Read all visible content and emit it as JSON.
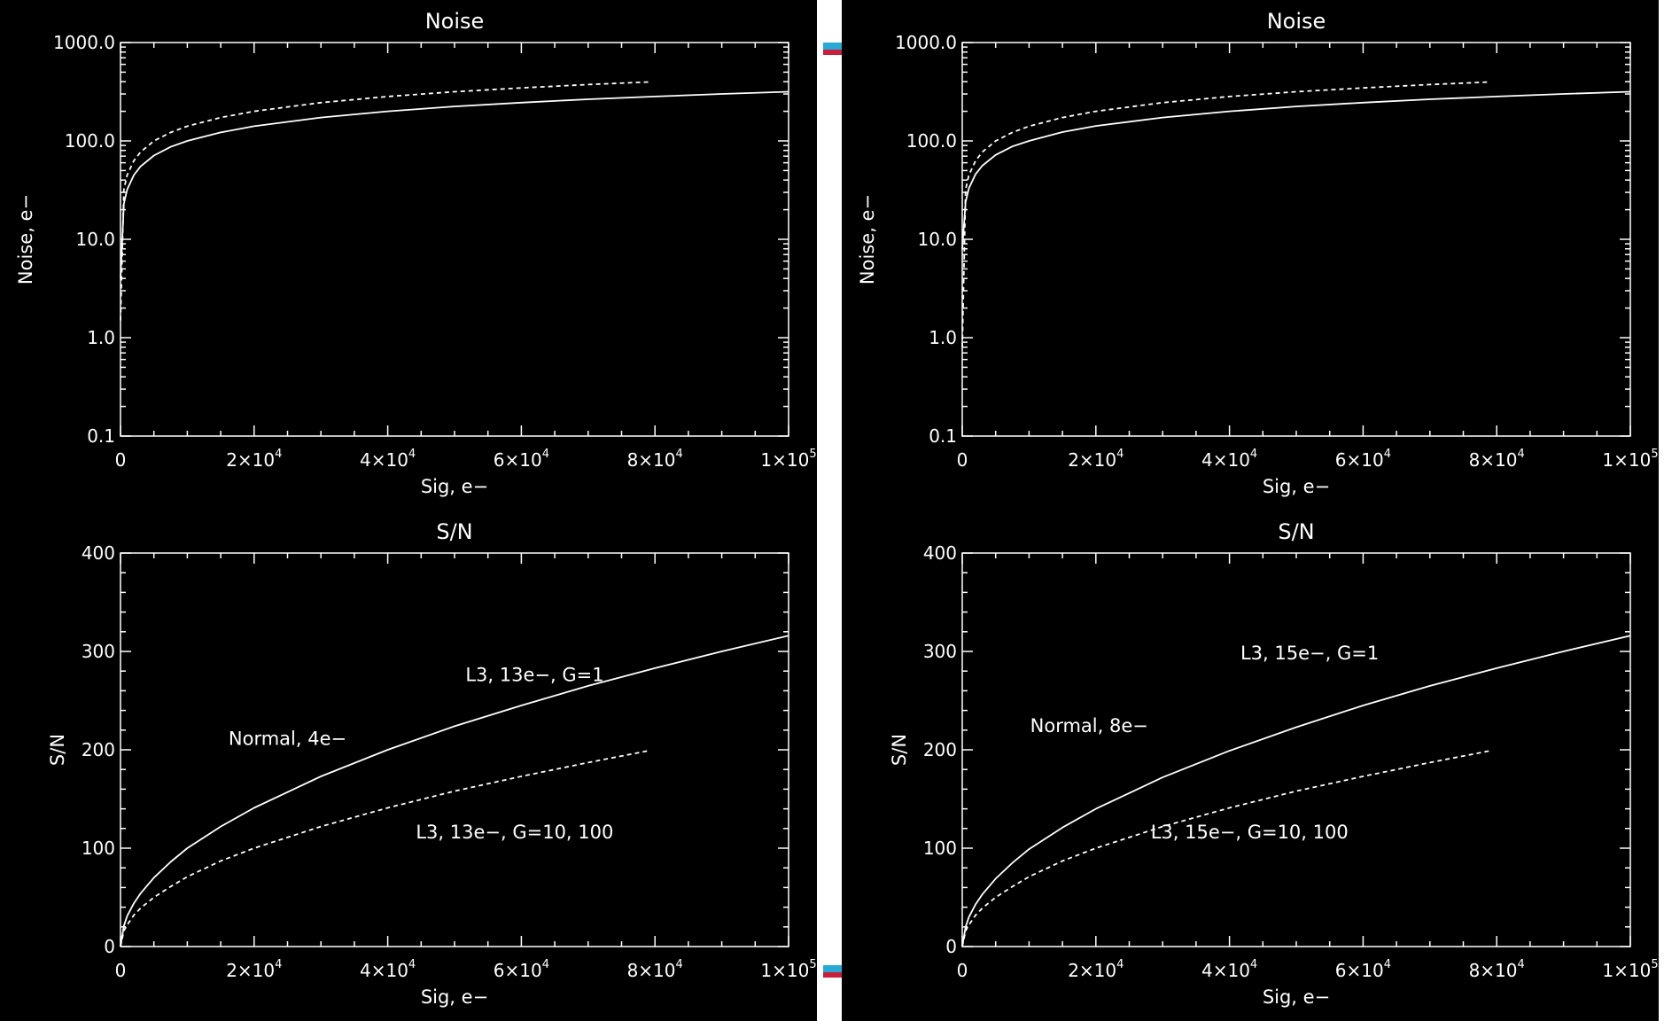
{
  "window": {
    "separator_colors": {
      "cyan": "#29a9d4",
      "red": "#c8203c"
    }
  },
  "chart_data": [
    {
      "type": "line",
      "title": "Noise",
      "xlabel": "Sig, e−",
      "ylabel": "Noise, e−",
      "xlim": [
        0,
        100000
      ],
      "ylim": [
        0.1,
        1000.0
      ],
      "yscale": "log",
      "grid": false,
      "x_tick_labels": [
        {
          "m": "0",
          "e": ""
        },
        {
          "m": "2×10",
          "e": "4"
        },
        {
          "m": "4×10",
          "e": "4"
        },
        {
          "m": "6×10",
          "e": "4"
        },
        {
          "m": "8×10",
          "e": "4"
        },
        {
          "m": "1×10",
          "e": "5"
        }
      ],
      "y_tick_labels": [
        "0.1",
        "1.0",
        "10.0",
        "100.0",
        "1000.0"
      ],
      "series": [
        {
          "style": "solid",
          "x": [
            0,
            500,
            1000,
            2000,
            3000,
            5000,
            7500,
            10000,
            15000,
            20000,
            30000,
            40000,
            50000,
            60000,
            70000,
            80000,
            90000,
            100000
          ],
          "y": [
            4,
            23,
            32,
            45,
            55,
            71,
            87,
            100,
            122,
            141,
            173,
            200,
            224,
            245,
            265,
            283,
            300,
            316
          ]
        },
        {
          "style": "dashed",
          "x": [
            0,
            500,
            1000,
            2000,
            3000,
            5000,
            7500,
            10000,
            15000,
            20000,
            30000,
            40000,
            50000,
            60000,
            70000,
            79000
          ],
          "y": [
            1.5,
            32,
            45,
            63,
            77,
            100,
            122,
            141,
            173,
            200,
            245,
            283,
            316,
            346,
            374,
            397
          ]
        }
      ],
      "annotations": []
    },
    {
      "type": "line",
      "title": "S/N",
      "xlabel": "Sig, e−",
      "ylabel": "S/N",
      "xlim": [
        0,
        100000
      ],
      "ylim": [
        0,
        400
      ],
      "yscale": "linear",
      "grid": false,
      "x_tick_labels": [
        {
          "m": "0",
          "e": ""
        },
        {
          "m": "2×10",
          "e": "4"
        },
        {
          "m": "4×10",
          "e": "4"
        },
        {
          "m": "6×10",
          "e": "4"
        },
        {
          "m": "8×10",
          "e": "4"
        },
        {
          "m": "1×10",
          "e": "5"
        }
      ],
      "y_tick_labels": [
        "0",
        "100",
        "200",
        "300",
        "400"
      ],
      "series": [
        {
          "style": "solid",
          "x": [
            0,
            500,
            1000,
            2000,
            3000,
            5000,
            7500,
            10000,
            15000,
            20000,
            30000,
            40000,
            50000,
            60000,
            70000,
            80000,
            90000,
            100000
          ],
          "y": [
            0,
            21,
            31,
            44,
            54,
            70,
            86,
            100,
            122,
            141,
            173,
            200,
            224,
            245,
            265,
            283,
            300,
            316
          ]
        },
        {
          "style": "dashed",
          "x": [
            0,
            500,
            1000,
            2000,
            3000,
            5000,
            7500,
            10000,
            15000,
            20000,
            30000,
            40000,
            50000,
            60000,
            70000,
            79000
          ],
          "y": [
            0,
            16,
            22,
            32,
            39,
            50,
            61,
            71,
            87,
            100,
            122,
            141,
            158,
            173,
            187,
            199
          ]
        }
      ],
      "annotations": [
        {
          "text": "Normal, 4e−",
          "x": 25000,
          "y": 205
        },
        {
          "text": "L3, 13e−, G=1",
          "x": 62000,
          "y": 270
        },
        {
          "text": "L3, 13e−, G=10, 100",
          "x": 59000,
          "y": 110
        }
      ]
    },
    {
      "type": "line",
      "title": "Noise",
      "xlabel": "Sig, e−",
      "ylabel": "Noise, e−",
      "xlim": [
        0,
        100000
      ],
      "ylim": [
        0.1,
        1000.0
      ],
      "yscale": "log",
      "grid": false,
      "x_tick_labels": [
        {
          "m": "0",
          "e": ""
        },
        {
          "m": "2×10",
          "e": "4"
        },
        {
          "m": "4×10",
          "e": "4"
        },
        {
          "m": "6×10",
          "e": "4"
        },
        {
          "m": "8×10",
          "e": "4"
        },
        {
          "m": "1×10",
          "e": "5"
        }
      ],
      "y_tick_labels": [
        "0.1",
        "1.0",
        "10.0",
        "100.0",
        "1000.0"
      ],
      "series": [
        {
          "style": "solid",
          "x": [
            0,
            500,
            1000,
            2000,
            3000,
            5000,
            7500,
            10000,
            15000,
            20000,
            30000,
            40000,
            50000,
            60000,
            70000,
            80000,
            90000,
            100000
          ],
          "y": [
            8,
            24,
            33,
            46,
            56,
            72,
            88,
            100,
            123,
            142,
            173,
            200,
            224,
            245,
            265,
            283,
            300,
            316
          ]
        },
        {
          "style": "dashed",
          "x": [
            0,
            500,
            1000,
            2000,
            3000,
            5000,
            7500,
            10000,
            15000,
            20000,
            30000,
            40000,
            50000,
            60000,
            70000,
            79000
          ],
          "y": [
            0.8,
            32,
            45,
            63,
            77,
            100,
            122,
            141,
            173,
            200,
            245,
            283,
            316,
            346,
            374,
            397
          ]
        }
      ],
      "annotations": []
    },
    {
      "type": "line",
      "title": "S/N",
      "xlabel": "Sig, e−",
      "ylabel": "S/N",
      "xlim": [
        0,
        100000
      ],
      "ylim": [
        0,
        400
      ],
      "yscale": "linear",
      "grid": false,
      "x_tick_labels": [
        {
          "m": "0",
          "e": ""
        },
        {
          "m": "2×10",
          "e": "4"
        },
        {
          "m": "4×10",
          "e": "4"
        },
        {
          "m": "6×10",
          "e": "4"
        },
        {
          "m": "8×10",
          "e": "4"
        },
        {
          "m": "1×10",
          "e": "5"
        }
      ],
      "y_tick_labels": [
        "0",
        "100",
        "200",
        "300",
        "400"
      ],
      "series": [
        {
          "style": "solid",
          "x": [
            0,
            500,
            1000,
            2000,
            3000,
            5000,
            7500,
            10000,
            15000,
            20000,
            30000,
            40000,
            50000,
            60000,
            70000,
            80000,
            90000,
            100000
          ],
          "y": [
            0,
            20,
            30,
            43,
            53,
            69,
            85,
            99,
            121,
            140,
            172,
            199,
            223,
            245,
            265,
            283,
            300,
            316
          ]
        },
        {
          "style": "dashed",
          "x": [
            0,
            500,
            1000,
            2000,
            3000,
            5000,
            7500,
            10000,
            15000,
            20000,
            30000,
            40000,
            50000,
            60000,
            70000,
            79000
          ],
          "y": [
            0,
            16,
            22,
            32,
            39,
            50,
            61,
            71,
            87,
            100,
            122,
            141,
            158,
            173,
            187,
            199
          ]
        }
      ],
      "annotations": [
        {
          "text": "Normal, 8e−",
          "x": 19000,
          "y": 218
        },
        {
          "text": "L3, 15e−, G=1",
          "x": 52000,
          "y": 292
        },
        {
          "text": "L3, 15e−, G=10, 100",
          "x": 43000,
          "y": 110
        }
      ]
    }
  ]
}
